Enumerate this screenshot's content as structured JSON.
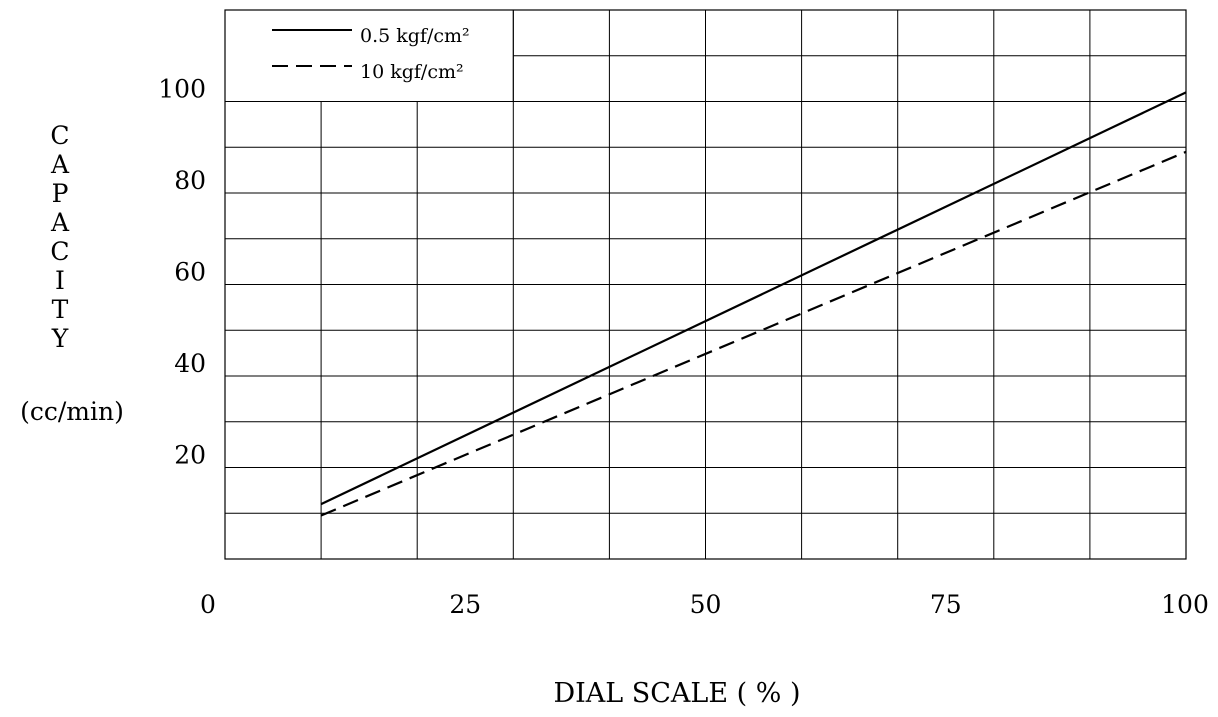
{
  "chart_data": {
    "type": "line",
    "xlabel": "DIAL SCALE ( % )",
    "ylabel_letters": [
      "C",
      "A",
      "P",
      "A",
      "C",
      "I",
      "T",
      "Y"
    ],
    "ylabel_unit": "(cc/min)",
    "xlim": [
      0,
      100
    ],
    "ylim": [
      0,
      120
    ],
    "x_ticks": [
      {
        "value": 0,
        "label": "0"
      },
      {
        "value": 25,
        "label": "25"
      },
      {
        "value": 50,
        "label": "50"
      },
      {
        "value": 75,
        "label": "75"
      },
      {
        "value": 100,
        "label": "100"
      }
    ],
    "y_ticks": [
      {
        "value": 20,
        "label": "20"
      },
      {
        "value": 40,
        "label": "40"
      },
      {
        "value": 60,
        "label": "60"
      },
      {
        "value": 80,
        "label": "80"
      },
      {
        "value": 100,
        "label": "100"
      }
    ],
    "grid": true,
    "x_grid_step": 10,
    "y_grid_step": 10,
    "legend_placement": "top-left",
    "series": [
      {
        "name": "0.5 kgf/cm²",
        "style": "solid",
        "color": "#000000",
        "x": [
          10,
          100
        ],
        "y": [
          12,
          102
        ]
      },
      {
        "name": "10 kgf/cm²",
        "style": "dashed",
        "color": "#000000",
        "x": [
          10,
          100
        ],
        "y": [
          9.5,
          89
        ]
      }
    ]
  }
}
